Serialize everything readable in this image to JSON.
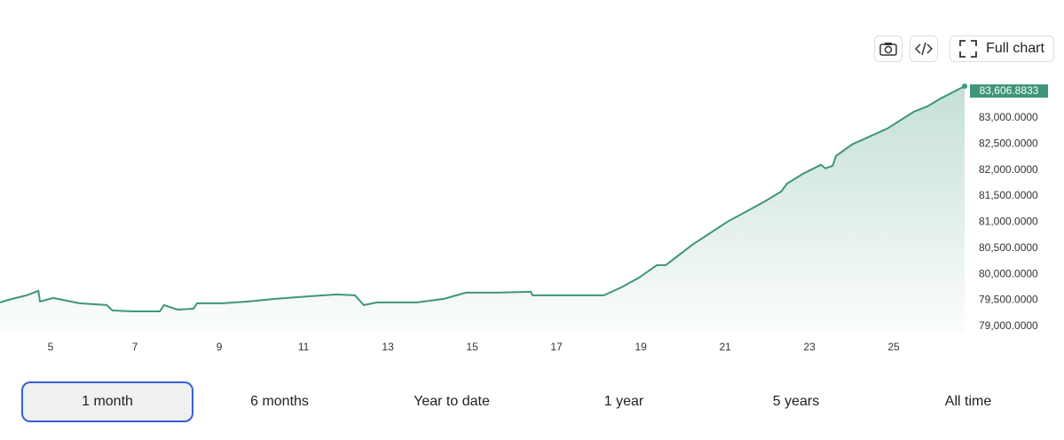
{
  "toolbar": {
    "full_chart": "Full chart"
  },
  "chart_data": {
    "type": "area",
    "color": "#3e957a",
    "grid": false,
    "x": [
      3.8,
      4.01,
      4.43,
      4.6,
      4.71,
      4.75,
      5.06,
      5.27,
      5.69,
      6.33,
      6.47,
      6.96,
      7.59,
      7.69,
      8.01,
      8.39,
      8.47,
      9.06,
      9.69,
      10.33,
      11.17,
      11.8,
      12.22,
      12.43,
      12.75,
      13.69,
      14.33,
      14.85,
      15.59,
      16.39,
      16.43,
      17.27,
      18.12,
      18.54,
      18.96,
      19.38,
      19.59,
      20.22,
      21.06,
      21.91,
      22.33,
      22.47,
      22.85,
      23.27,
      23.38,
      23.55,
      23.63,
      24.01,
      24.85,
      25.48,
      25.8,
      26.12,
      26.68
    ],
    "values": [
      79460,
      79511,
      79596,
      79647,
      79681,
      79477,
      79545,
      79511,
      79443,
      79409,
      79306,
      79289,
      79289,
      79409,
      79323,
      79340,
      79443,
      79443,
      79477,
      79528,
      79579,
      79613,
      79596,
      79409,
      79460,
      79460,
      79528,
      79647,
      79647,
      79664,
      79596,
      79596,
      79596,
      79749,
      79936,
      80174,
      80174,
      80566,
      81009,
      81383,
      81587,
      81740,
      81928,
      82098,
      82030,
      82081,
      82268,
      82489,
      82796,
      83119,
      83221,
      83374,
      83606.8833
    ],
    "value_labels": [
      null,
      null,
      null,
      null,
      null,
      null,
      null,
      null,
      null,
      null,
      null,
      null,
      null,
      null,
      null,
      null,
      null,
      null,
      null,
      null,
      null,
      null,
      null,
      null,
      null,
      null,
      null,
      null,
      null,
      null,
      null,
      null,
      null,
      null,
      null,
      null,
      null,
      null,
      null,
      null,
      null,
      null,
      null,
      null,
      null,
      null,
      null,
      null,
      null,
      null,
      null,
      null,
      "83,606.8833"
    ],
    "xlim": [
      3.8,
      26.68
    ],
    "xticks": [
      5,
      7,
      9,
      11,
      13,
      15,
      17,
      19,
      21,
      23,
      25
    ],
    "ylim": [
      78880,
      83660
    ],
    "yticks": [
      {
        "value": 79000,
        "label": "79,000.0000"
      },
      {
        "value": 79500,
        "label": "79,500.0000"
      },
      {
        "value": 80000,
        "label": "80,000.0000"
      },
      {
        "value": 80500,
        "label": "80,500.0000"
      },
      {
        "value": 81000,
        "label": "81,000.0000"
      },
      {
        "value": 81500,
        "label": "81,500.0000"
      },
      {
        "value": 82000,
        "label": "82,000.0000"
      },
      {
        "value": 82500,
        "label": "82,500.0000"
      },
      {
        "value": 83000,
        "label": "83,000.0000"
      }
    ]
  },
  "range_buttons": {
    "items": [
      "1 month",
      "6 months",
      "Year to date",
      "1 year",
      "5 years",
      "All time"
    ],
    "selected": 0
  }
}
